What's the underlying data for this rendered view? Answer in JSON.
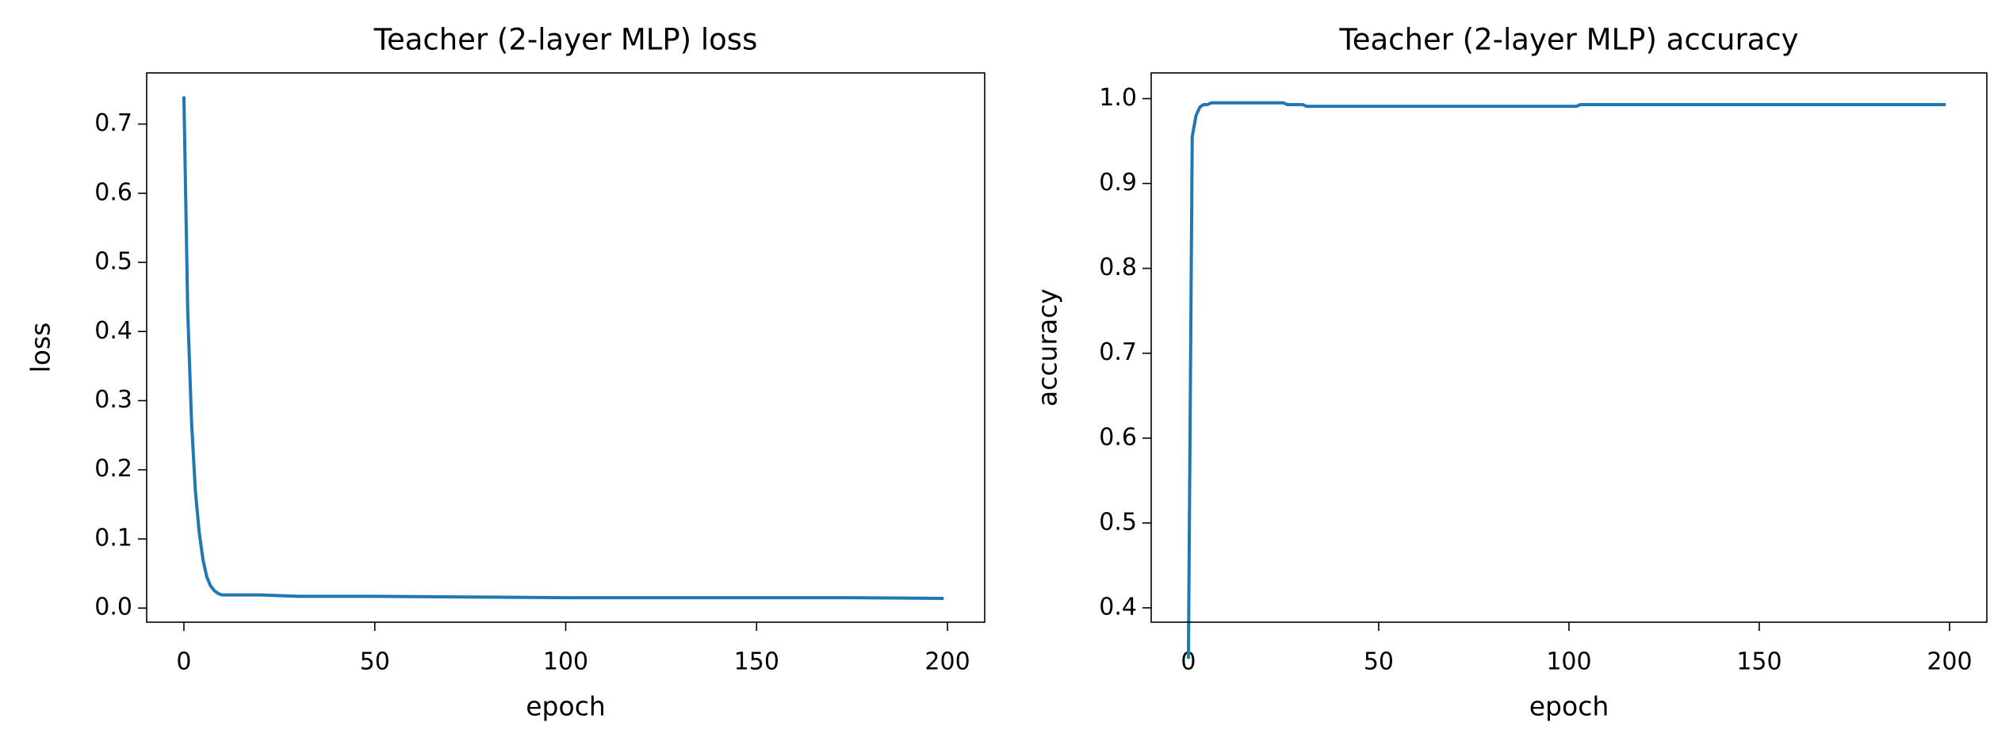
{
  "chart_data": [
    {
      "type": "line",
      "title": "Teacher (2-layer MLP) loss",
      "x_label": "epoch",
      "y_label": "loss",
      "x": [
        0,
        1,
        2,
        3,
        4,
        5,
        6,
        7,
        8,
        9,
        10,
        12,
        15,
        20,
        25,
        30,
        40,
        50,
        75,
        100,
        125,
        150,
        175,
        199
      ],
      "values": [
        0.74,
        0.43,
        0.27,
        0.17,
        0.11,
        0.07,
        0.045,
        0.032,
        0.025,
        0.021,
        0.019,
        0.019,
        0.019,
        0.019,
        0.018,
        0.017,
        0.017,
        0.017,
        0.016,
        0.015,
        0.015,
        0.015,
        0.015,
        0.014
      ],
      "color": "#1f77b4",
      "xlim": [
        -9.75,
        209.75
      ],
      "xticks": [
        0,
        50,
        100,
        150,
        200
      ],
      "ylim": [
        -0.0204,
        0.774
      ],
      "yticks": [
        {
          "value": 0,
          "label": "0.0"
        },
        0.1,
        0.2,
        0.3,
        0.4,
        0.5,
        0.6,
        0.7
      ]
    },
    {
      "type": "line",
      "title": "Teacher (2-layer MLP) accuracy",
      "x_label": "epoch",
      "y_label": "accuracy",
      "x": [
        0,
        1,
        2,
        3,
        4,
        5,
        6,
        25,
        26,
        27,
        30,
        31,
        100,
        102,
        103,
        199
      ],
      "values": [
        0.34,
        0.955,
        0.98,
        0.99,
        0.993,
        0.993,
        0.995,
        0.995,
        0.993,
        0.993,
        0.993,
        0.991,
        0.991,
        0.991,
        0.993,
        0.993
      ],
      "color": "#1f77b4",
      "xlim": [
        -9.78,
        209.8
      ],
      "xticks": [
        0,
        50,
        100,
        150,
        200
      ],
      "ylim": [
        0.3831,
        1.0303
      ],
      "yticks": [
        0.4,
        0.5,
        0.6,
        0.7,
        0.8,
        0.9,
        {
          "value": 1,
          "label": "1.0"
        }
      ]
    }
  ]
}
